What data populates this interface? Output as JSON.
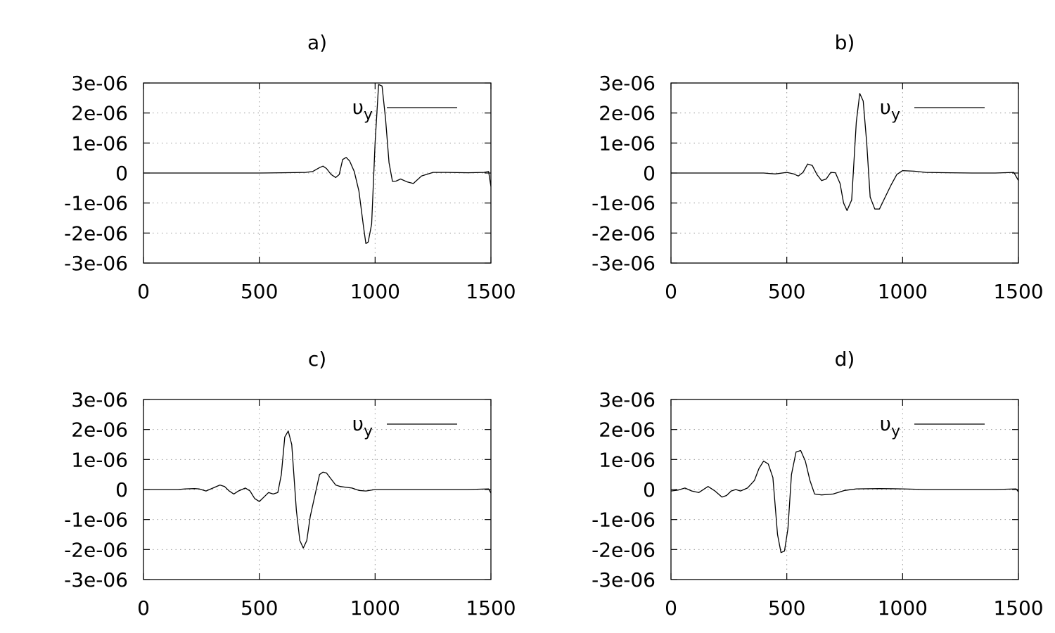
{
  "chart_data": [
    {
      "type": "line",
      "title": "a)",
      "xlim": [
        0,
        1500
      ],
      "ylim": [
        -3e-06,
        3e-06
      ],
      "x_ticks": [
        "0",
        "500",
        "1000",
        "1500"
      ],
      "y_ticks": [
        "3e-06",
        "2e-06",
        "1e-06",
        "0",
        "-1e-06",
        "-2e-06",
        "-3e-06"
      ],
      "grid": true,
      "legend_position": "top-right",
      "series": [
        {
          "name": "υy",
          "name_main": "υ",
          "name_sub": "y",
          "x": [
            0,
            200,
            400,
            500,
            600,
            700,
            730,
            760,
            775,
            790,
            810,
            830,
            845,
            860,
            875,
            890,
            910,
            930,
            950,
            960,
            970,
            985,
            1000,
            1015,
            1030,
            1045,
            1060,
            1075,
            1090,
            1110,
            1140,
            1165,
            1200,
            1250,
            1300,
            1400,
            1470,
            1490,
            1500
          ],
          "y": [
            0,
            0,
            0,
            0,
            1e-08,
            2e-08,
            5e-08,
            1.8e-07,
            2.3e-07,
            1.5e-07,
            -5e-08,
            -1.5e-07,
            -5e-08,
            4.5e-07,
            5.2e-07,
            4e-07,
            5e-08,
            -6e-07,
            -1.8e-06,
            -2.35e-06,
            -2.3e-06,
            -1.7e-06,
            1e-06,
            2.95e-06,
            2.9e-06,
            1.8e-06,
            3.5e-07,
            -2.8e-07,
            -2.7e-07,
            -2e-07,
            -3e-07,
            -3.5e-07,
            -1e-07,
            2e-08,
            2e-08,
            1e-08,
            2e-08,
            5e-08,
            -4.5e-07
          ]
        }
      ]
    },
    {
      "type": "line",
      "title": "b)",
      "xlim": [
        0,
        1500
      ],
      "ylim": [
        -3e-06,
        3e-06
      ],
      "x_ticks": [
        "0",
        "500",
        "1000",
        "1500"
      ],
      "y_ticks": [
        "3e-06",
        "2e-06",
        "1e-06",
        "0",
        "-1e-06",
        "-2e-06",
        "-3e-06"
      ],
      "grid": true,
      "legend_position": "top-right",
      "series": [
        {
          "name": "υy",
          "name_main": "υ",
          "name_sub": "y",
          "x": [
            0,
            300,
            400,
            450,
            500,
            530,
            550,
            570,
            590,
            610,
            630,
            650,
            670,
            690,
            710,
            730,
            745,
            760,
            780,
            800,
            815,
            830,
            845,
            860,
            880,
            900,
            925,
            950,
            975,
            1000,
            1050,
            1100,
            1200,
            1300,
            1400,
            1480,
            1500
          ],
          "y": [
            0,
            0,
            0,
            -3e-08,
            2e-08,
            -3e-08,
            -1e-07,
            2e-08,
            3e-07,
            2.5e-07,
            -5e-08,
            -2.5e-07,
            -2e-07,
            2e-08,
            1e-08,
            -3.5e-07,
            -1e-06,
            -1.25e-06,
            -9e-07,
            1.7e-06,
            2.65e-06,
            2.4e-06,
            1e-06,
            -8e-07,
            -1.2e-06,
            -1.2e-06,
            -8e-07,
            -4e-07,
            -5e-08,
            8e-08,
            6e-08,
            2e-08,
            1e-08,
            0,
            0,
            2e-08,
            -2.5e-07
          ]
        }
      ]
    },
    {
      "type": "line",
      "title": "c)",
      "xlim": [
        0,
        1500
      ],
      "ylim": [
        -3e-06,
        3e-06
      ],
      "x_ticks": [
        "0",
        "500",
        "1000",
        "1500"
      ],
      "y_ticks": [
        "3e-06",
        "2e-06",
        "1e-06",
        "0",
        "-1e-06",
        "-2e-06",
        "-3e-06"
      ],
      "grid": true,
      "legend_position": "top-right",
      "series": [
        {
          "name": "υy",
          "name_main": "υ",
          "name_sub": "y",
          "x": [
            0,
            150,
            180,
            220,
            240,
            270,
            300,
            330,
            350,
            370,
            390,
            410,
            440,
            460,
            480,
            500,
            520,
            540,
            560,
            580,
            595,
            610,
            625,
            640,
            660,
            675,
            690,
            705,
            720,
            740,
            760,
            775,
            790,
            810,
            830,
            850,
            870,
            900,
            930,
            960,
            1000,
            1100,
            1200,
            1300,
            1400,
            1490,
            1500
          ],
          "y": [
            0,
            0,
            2e-08,
            3e-08,
            2e-08,
            -5e-08,
            5e-08,
            1.5e-07,
            1e-07,
            -5e-08,
            -1.5e-07,
            -5e-08,
            5e-08,
            -5e-08,
            -3e-07,
            -4e-07,
            -2.5e-07,
            -1e-07,
            -1.5e-07,
            -1e-07,
            5e-07,
            1.75e-06,
            1.95e-06,
            1.5e-06,
            -7e-07,
            -1.7e-06,
            -1.95e-06,
            -1.7e-06,
            -9e-07,
            -2e-07,
            5e-07,
            5.8e-07,
            5.5e-07,
            3.5e-07,
            1.5e-07,
            1e-07,
            8e-08,
            5e-08,
            -3e-08,
            -5e-08,
            0,
            0,
            0,
            0,
            0,
            2e-08,
            -1.2e-07
          ]
        }
      ]
    },
    {
      "type": "line",
      "title": "d)",
      "xlim": [
        0,
        1500
      ],
      "ylim": [
        -3e-06,
        3e-06
      ],
      "x_ticks": [
        "0",
        "500",
        "1000",
        "1500"
      ],
      "y_ticks": [
        "3e-06",
        "2e-06",
        "1e-06",
        "0",
        "-1e-06",
        "-2e-06",
        "-3e-06"
      ],
      "grid": true,
      "legend_position": "top-right",
      "series": [
        {
          "name": "υy",
          "name_main": "υ",
          "name_sub": "y",
          "x": [
            0,
            30,
            60,
            90,
            120,
            160,
            190,
            220,
            240,
            260,
            280,
            300,
            330,
            360,
            380,
            400,
            420,
            440,
            460,
            475,
            490,
            505,
            520,
            540,
            560,
            580,
            600,
            620,
            650,
            700,
            750,
            800,
            900,
            1000,
            1100,
            1200,
            1300,
            1400,
            1490,
            1500
          ],
          "y": [
            -5e-08,
            -2e-08,
            5e-08,
            -5e-08,
            -1e-07,
            1e-07,
            -5e-08,
            -2.5e-07,
            -2e-07,
            -5e-08,
            0,
            -5e-08,
            5e-08,
            3e-07,
            7e-07,
            9.5e-07,
            8.5e-07,
            4e-07,
            -1.5e-06,
            -2.1e-06,
            -2.05e-06,
            -1.3e-06,
            5e-07,
            1.25e-06,
            1.3e-06,
            9.5e-07,
            3e-07,
            -1.5e-07,
            -1.8e-07,
            -1.5e-07,
            -3e-08,
            2e-08,
            3e-08,
            2e-08,
            0,
            0,
            0,
            0,
            2e-08,
            -8e-08
          ]
        }
      ]
    }
  ]
}
